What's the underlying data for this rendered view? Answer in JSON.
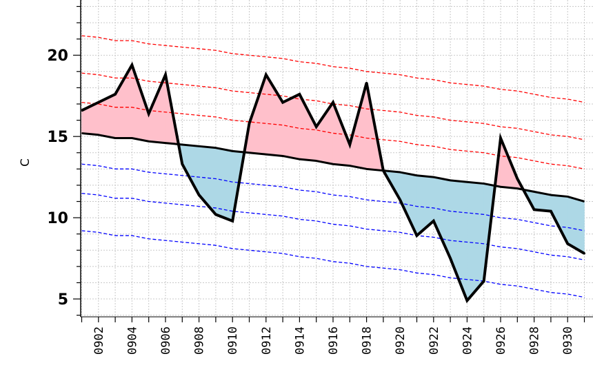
{
  "chart_data": {
    "type": "line",
    "title": "",
    "xlabel": "",
    "ylabel": "C",
    "ylim": [
      3.9,
      23.4
    ],
    "xlim": [
      1,
      31
    ],
    "y_ticks": [
      "5",
      "10",
      "15",
      "20"
    ],
    "x_ticks": [
      "0902",
      "0904",
      "0906",
      "0908",
      "0910",
      "0912",
      "0914",
      "0916",
      "0918",
      "0920",
      "0922",
      "0924",
      "0926",
      "0928",
      "0930"
    ],
    "grid": true,
    "colors": {
      "above": "#ffc0cb",
      "below": "#add8e6",
      "upper_bands": "#ff0000",
      "lower_bands": "#0000ff",
      "observed": "#000000",
      "normal": "#000000"
    },
    "series": [
      {
        "values": [
          16.6,
          17.1,
          17.6,
          19.4,
          16.4,
          18.8,
          13.3,
          11.4,
          10.2,
          9.8,
          15.8,
          18.8,
          17.1,
          17.6,
          15.6,
          17.1,
          14.5,
          18.3,
          12.9,
          11.1,
          8.9,
          9.8,
          7.5,
          4.9,
          6.1,
          14.9,
          12.4,
          10.5,
          10.4,
          8.4,
          7.8
        ]
      },
      {
        "values": [
          15.2,
          15.1,
          14.9,
          14.9,
          14.7,
          14.6,
          14.5,
          14.4,
          14.3,
          14.1,
          14.0,
          13.9,
          13.8,
          13.6,
          13.5,
          13.3,
          13.2,
          13.0,
          12.9,
          12.8,
          12.6,
          12.5,
          12.3,
          12.2,
          12.1,
          11.9,
          11.8,
          11.6,
          11.4,
          11.3,
          11.0
        ]
      },
      {
        "values": [
          21.2,
          21.1,
          20.9,
          20.9,
          20.7,
          20.6,
          20.5,
          20.4,
          20.3,
          20.1,
          20.0,
          19.9,
          19.8,
          19.6,
          19.5,
          19.3,
          19.2,
          19.0,
          18.9,
          18.8,
          18.6,
          18.5,
          18.3,
          18.2,
          18.1,
          17.9,
          17.8,
          17.6,
          17.4,
          17.3,
          17.1
        ]
      },
      {
        "values": [
          18.9,
          18.8,
          18.6,
          18.6,
          18.4,
          18.3,
          18.2,
          18.1,
          18.0,
          17.8,
          17.7,
          17.6,
          17.5,
          17.3,
          17.2,
          17.0,
          16.9,
          16.7,
          16.6,
          16.5,
          16.3,
          16.2,
          16.0,
          15.9,
          15.8,
          15.6,
          15.5,
          15.3,
          15.1,
          15.0,
          14.8
        ]
      },
      {
        "values": [
          17.1,
          17.0,
          16.8,
          16.8,
          16.6,
          16.5,
          16.4,
          16.3,
          16.2,
          16.0,
          15.9,
          15.8,
          15.7,
          15.5,
          15.4,
          15.2,
          15.1,
          14.9,
          14.8,
          14.7,
          14.5,
          14.4,
          14.2,
          14.1,
          14.0,
          13.8,
          13.7,
          13.5,
          13.3,
          13.2,
          13.0
        ]
      },
      {
        "values": [
          13.3,
          13.2,
          13.0,
          13.0,
          12.8,
          12.7,
          12.6,
          12.5,
          12.4,
          12.2,
          12.1,
          12.0,
          11.9,
          11.7,
          11.6,
          11.4,
          11.3,
          11.1,
          11.0,
          10.9,
          10.7,
          10.6,
          10.4,
          10.3,
          10.2,
          10.0,
          9.9,
          9.7,
          9.5,
          9.4,
          9.2
        ]
      },
      {
        "values": [
          11.5,
          11.4,
          11.2,
          11.2,
          11.0,
          10.9,
          10.8,
          10.7,
          10.6,
          10.4,
          10.3,
          10.2,
          10.1,
          9.9,
          9.8,
          9.6,
          9.5,
          9.3,
          9.2,
          9.1,
          8.9,
          8.8,
          8.6,
          8.5,
          8.4,
          8.2,
          8.1,
          7.9,
          7.7,
          7.6,
          7.4
        ]
      },
      {
        "values": [
          9.2,
          9.1,
          8.9,
          8.9,
          8.7,
          8.6,
          8.5,
          8.4,
          8.3,
          8.1,
          8.0,
          7.9,
          7.8,
          7.6,
          7.5,
          7.3,
          7.2,
          7.0,
          6.9,
          6.8,
          6.6,
          6.5,
          6.3,
          6.2,
          6.1,
          5.9,
          5.8,
          5.6,
          5.4,
          5.3,
          5.1
        ]
      }
    ]
  }
}
